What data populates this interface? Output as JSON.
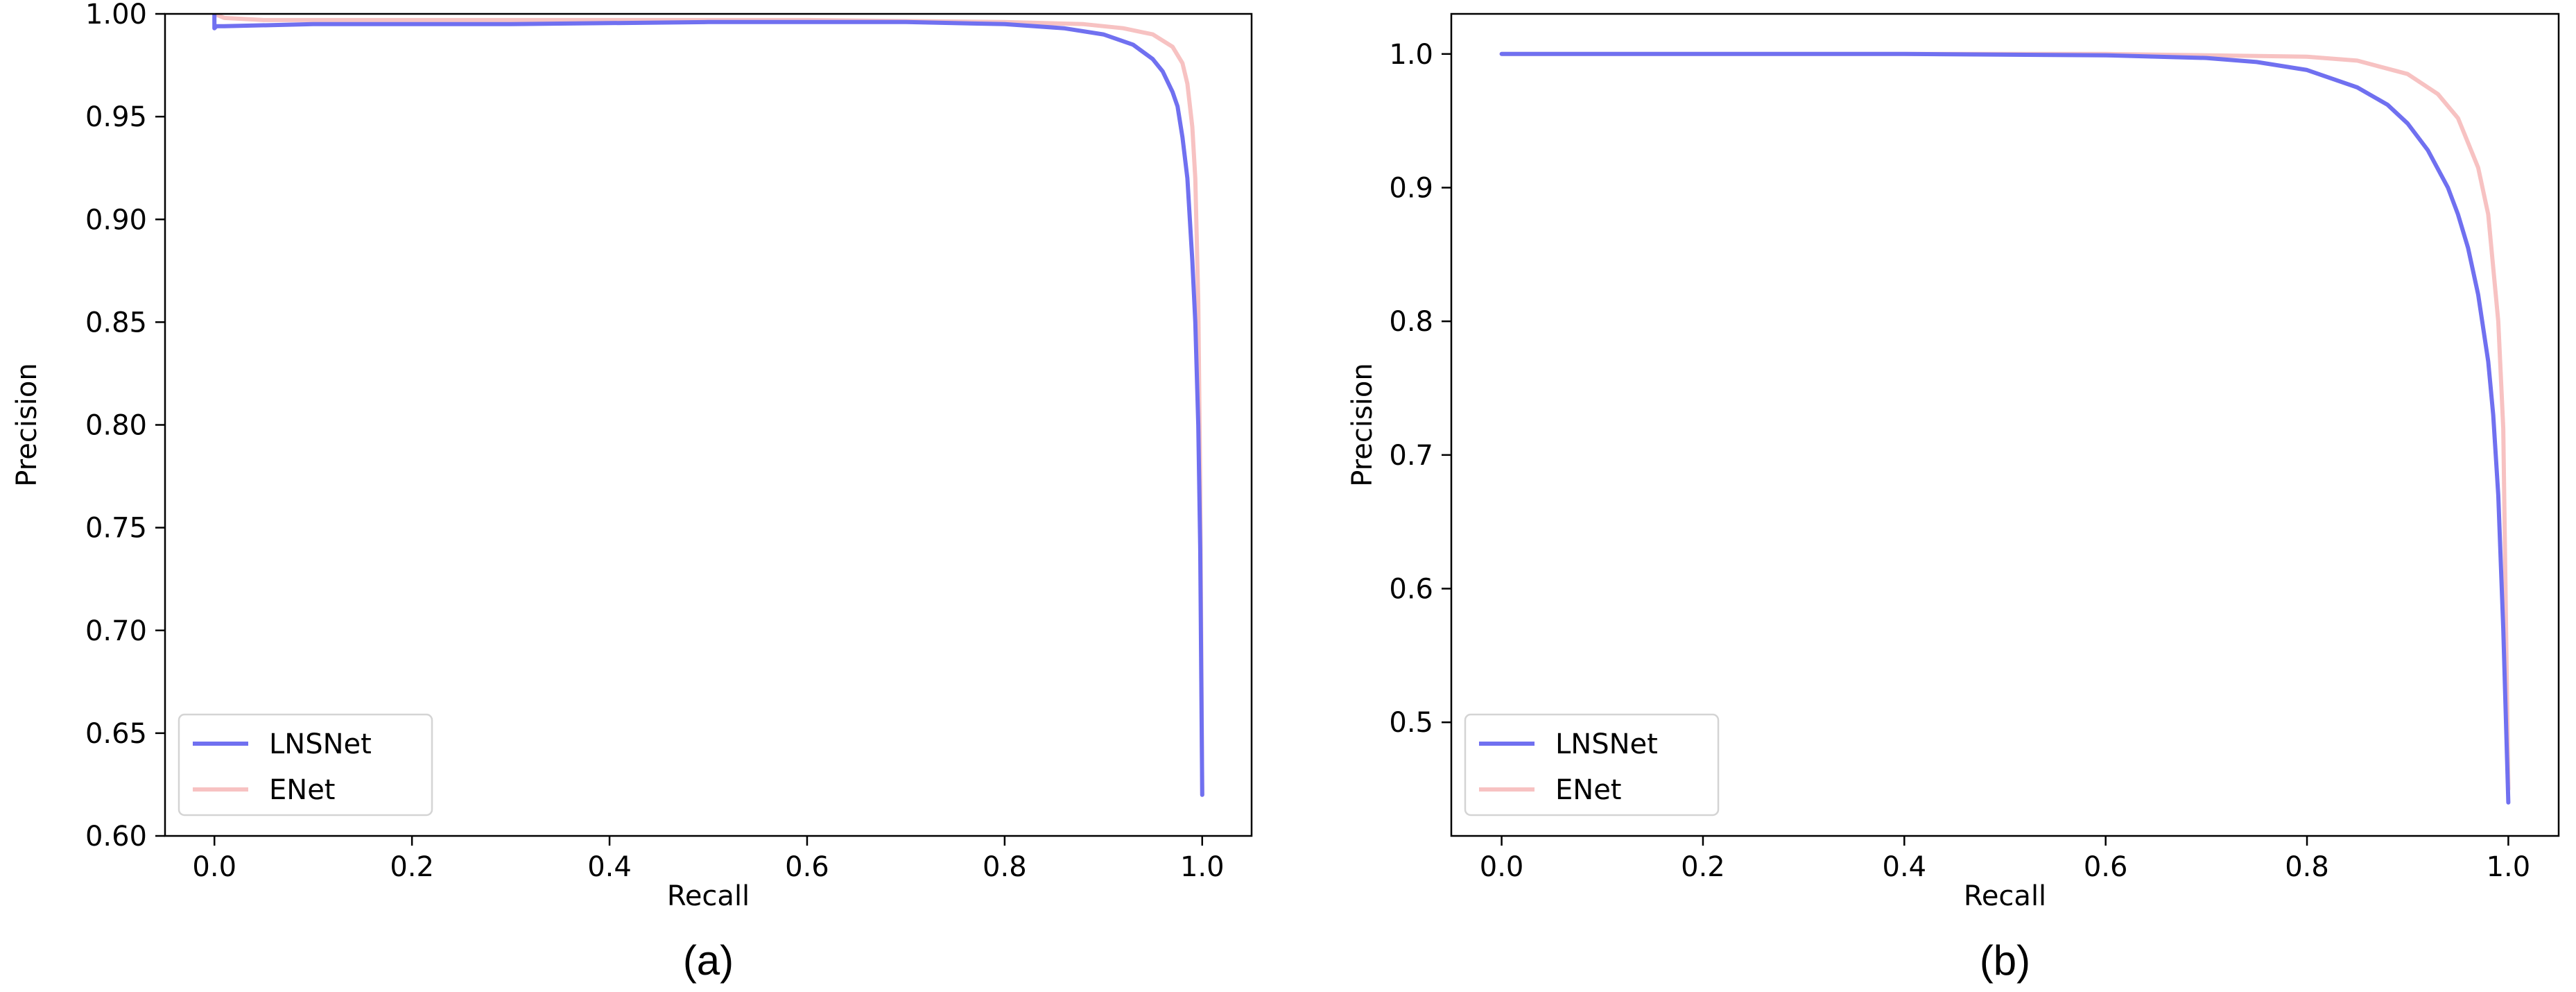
{
  "chart_data": [
    {
      "type": "line",
      "caption": "(a)",
      "xlabel": "Recall",
      "ylabel": "Precision",
      "xlim": [
        -0.05,
        1.05
      ],
      "ylim": [
        0.6,
        1.0
      ],
      "xticks": [
        0.0,
        0.2,
        0.4,
        0.6,
        0.8,
        1.0
      ],
      "xtick_labels": [
        "0.0",
        "0.2",
        "0.4",
        "0.6",
        "0.8",
        "1.0"
      ],
      "yticks": [
        0.6,
        0.65,
        0.7,
        0.75,
        0.8,
        0.85,
        0.9,
        0.95,
        1.0
      ],
      "ytick_labels": [
        "0.60",
        "0.65",
        "0.70",
        "0.75",
        "0.80",
        "0.85",
        "0.90",
        "0.95",
        "1.00"
      ],
      "grid": false,
      "legend_position": "lower-left",
      "series": [
        {
          "name": "LNSNet",
          "color": "#7070f0",
          "x": [
            0.0,
            0.0,
            0.002,
            0.01,
            0.1,
            0.3,
            0.5,
            0.7,
            0.8,
            0.86,
            0.9,
            0.93,
            0.95,
            0.96,
            0.97,
            0.975,
            0.98,
            0.985,
            0.99,
            0.993,
            0.996,
            0.998,
            1.0
          ],
          "y": [
            1.0,
            0.993,
            0.994,
            0.994,
            0.995,
            0.995,
            0.996,
            0.996,
            0.995,
            0.993,
            0.99,
            0.985,
            0.978,
            0.972,
            0.962,
            0.955,
            0.94,
            0.92,
            0.88,
            0.85,
            0.8,
            0.74,
            0.62
          ]
        },
        {
          "name": "ENet",
          "color": "#f7c2c2",
          "x": [
            0.0,
            0.01,
            0.05,
            0.2,
            0.4,
            0.6,
            0.8,
            0.88,
            0.92,
            0.95,
            0.97,
            0.98,
            0.985,
            0.99,
            0.993,
            0.996,
            0.998,
            1.0
          ],
          "y": [
            1.0,
            0.998,
            0.997,
            0.997,
            0.997,
            0.997,
            0.996,
            0.995,
            0.993,
            0.99,
            0.984,
            0.976,
            0.966,
            0.945,
            0.92,
            0.86,
            0.77,
            0.62
          ]
        }
      ]
    },
    {
      "type": "line",
      "caption": "(b)",
      "xlabel": "Recall",
      "ylabel": "Precision",
      "xlim": [
        -0.05,
        1.05
      ],
      "ylim": [
        0.415,
        1.03
      ],
      "xticks": [
        0.0,
        0.2,
        0.4,
        0.6,
        0.8,
        1.0
      ],
      "xtick_labels": [
        "0.0",
        "0.2",
        "0.4",
        "0.6",
        "0.8",
        "1.0"
      ],
      "yticks": [
        0.5,
        0.6,
        0.7,
        0.8,
        0.9,
        1.0
      ],
      "ytick_labels": [
        "0.5",
        "0.6",
        "0.7",
        "0.8",
        "0.9",
        "1.0"
      ],
      "grid": false,
      "legend_position": "lower-left",
      "series": [
        {
          "name": "LNSNet",
          "color": "#7070f0",
          "x": [
            0.0,
            0.2,
            0.4,
            0.6,
            0.7,
            0.75,
            0.8,
            0.85,
            0.88,
            0.9,
            0.92,
            0.94,
            0.95,
            0.96,
            0.97,
            0.98,
            0.985,
            0.99,
            0.995,
            1.0
          ],
          "y": [
            1.0,
            1.0,
            1.0,
            0.999,
            0.997,
            0.994,
            0.988,
            0.975,
            0.962,
            0.948,
            0.928,
            0.9,
            0.88,
            0.855,
            0.82,
            0.77,
            0.73,
            0.67,
            0.57,
            0.44
          ]
        },
        {
          "name": "ENet",
          "color": "#f7c2c2",
          "x": [
            0.0,
            0.2,
            0.4,
            0.6,
            0.8,
            0.85,
            0.9,
            0.93,
            0.95,
            0.97,
            0.98,
            0.99,
            0.995,
            1.0
          ],
          "y": [
            1.0,
            1.0,
            1.0,
            1.0,
            0.998,
            0.995,
            0.985,
            0.97,
            0.952,
            0.915,
            0.88,
            0.8,
            0.72,
            0.45
          ]
        }
      ]
    }
  ]
}
